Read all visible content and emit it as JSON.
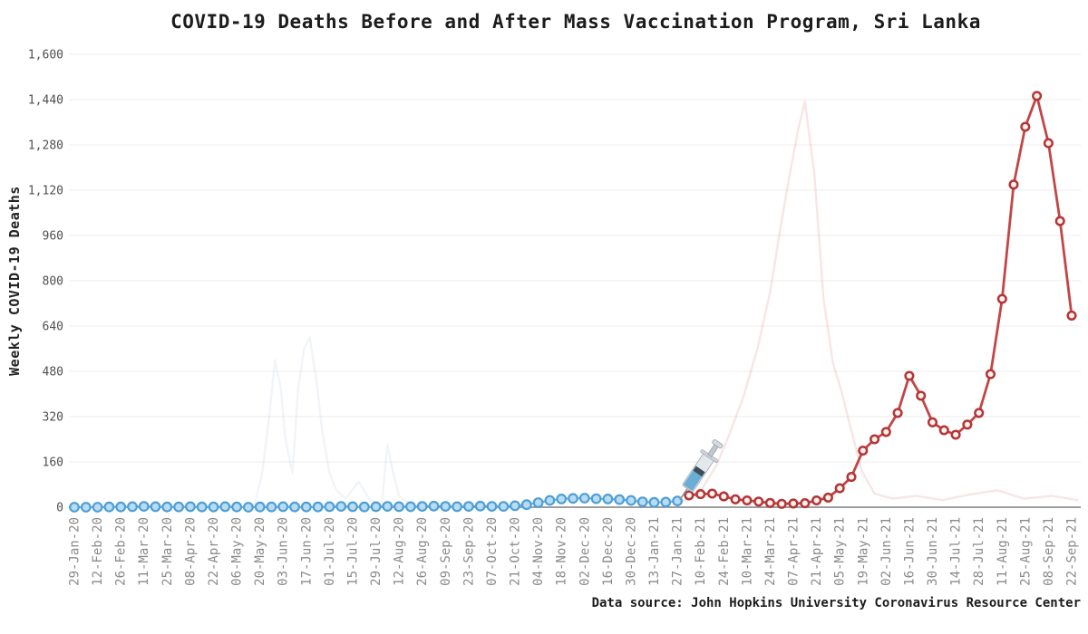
{
  "chart_data": {
    "type": "line",
    "title": "COVID-19 Deaths Before and After Mass Vaccination Program, Sri Lanka",
    "ylabel": "Weekly COVID-19 Deaths",
    "source_caption": "Data source: John Hopkins University Coronavirus Resource Center",
    "ylim": [
      0,
      1600
    ],
    "y_ticks": [
      0,
      160,
      320,
      480,
      640,
      800,
      960,
      1120,
      1280,
      1440,
      1600
    ],
    "y_tick_labels": [
      "0",
      "160",
      "320",
      "480",
      "640",
      "800",
      "960",
      "1,120",
      "1,280",
      "1,440",
      "1,600"
    ],
    "x_cadence": "weekly data points, axis labels every 2 weeks",
    "x_tick_labels": [
      "29-Jan-20",
      "12-Feb-20",
      "26-Feb-20",
      "11-Mar-20",
      "25-Mar-20",
      "08-Apr-20",
      "22-Apr-20",
      "06-May-20",
      "20-May-20",
      "03-Jun-20",
      "17-Jun-20",
      "01-Jul-20",
      "15-Jul-20",
      "29-Jul-20",
      "12-Aug-20",
      "26-Aug-20",
      "09-Sep-20",
      "23-Sep-20",
      "07-Oct-20",
      "21-Oct-20",
      "04-Nov-20",
      "18-Nov-20",
      "02-Dec-20",
      "16-Dec-20",
      "30-Dec-20",
      "13-Jan-21",
      "27-Jan-21",
      "10-Feb-21",
      "24-Feb-21",
      "10-Mar-21",
      "24-Mar-21",
      "07-Apr-21",
      "21-Apr-21",
      "05-May-21",
      "19-May-21",
      "02-Jun-21",
      "16-Jun-21",
      "30-Jun-21",
      "14-Jul-21",
      "28-Jul-21",
      "11-Aug-21",
      "25-Aug-21",
      "08-Sep-21",
      "22-Sep-21"
    ],
    "grid": "horizontal only",
    "legend": "none",
    "series": [
      {
        "name": "before-mass-vaccination",
        "color": "#4d9fd6",
        "fill": "#b9dcf2",
        "line_color": "#5fa8dc",
        "start": "29-Jan-20",
        "start_week_index": 0,
        "values": [
          0,
          0,
          0,
          1,
          1,
          2,
          3,
          2,
          1,
          1,
          2,
          1,
          1,
          2,
          1,
          0,
          1,
          1,
          2,
          1,
          1,
          1,
          2,
          3,
          2,
          1,
          2,
          3,
          2,
          2,
          3,
          4,
          3,
          2,
          3,
          4,
          3,
          3,
          5,
          9,
          16,
          24,
          29,
          31,
          32,
          30,
          29,
          27,
          24,
          19,
          17,
          18,
          22
        ]
      },
      {
        "name": "after-mass-vaccination",
        "color": "#b43535",
        "fill": "#fcf1f1",
        "line_color": "#c24646",
        "start": "03-Feb-21",
        "start_week_index": 53,
        "values": [
          42,
          46,
          48,
          38,
          28,
          24,
          20,
          15,
          12,
          13,
          14,
          24,
          34,
          67,
          107,
          200,
          240,
          266,
          333,
          464,
          394,
          300,
          272,
          256,
          292,
          333,
          470,
          736,
          1140,
          1344,
          1453,
          1286,
          1011,
          677
        ]
      }
    ],
    "annotation": {
      "icon": "syringe",
      "week_index": 52.2,
      "value": 26,
      "tilt_deg": 34
    },
    "watermark_ghosts": [
      {
        "name": "faint-red-ghost-curve",
        "color": "#e08a8a",
        "opacity": 0.22,
        "points": [
          [
            52.1,
            10
          ],
          [
            53,
            35
          ],
          [
            54.2,
            70
          ],
          [
            55.4,
            150
          ],
          [
            56.5,
            260
          ],
          [
            57.7,
            390
          ],
          [
            58.9,
            560
          ],
          [
            60,
            760
          ],
          [
            60.9,
            990
          ],
          [
            61.7,
            1180
          ],
          [
            62.4,
            1330
          ],
          [
            63,
            1434
          ],
          [
            63.8,
            1184
          ],
          [
            64.6,
            736
          ],
          [
            65.4,
            512
          ],
          [
            66.1,
            416
          ],
          [
            66.9,
            288
          ],
          [
            67.9,
            128
          ],
          [
            69,
            48
          ],
          [
            70.6,
            30
          ],
          [
            72.6,
            40
          ],
          [
            74.9,
            25
          ],
          [
            77.2,
            45
          ],
          [
            79.6,
            60
          ],
          [
            81.9,
            30
          ],
          [
            84.3,
            40
          ],
          [
            86.5,
            25
          ]
        ]
      },
      {
        "name": "faint-blue-ghost-curve",
        "color": "#b8c8dc",
        "opacity": 0.2,
        "points": [
          [
            15.5,
            5
          ],
          [
            16.2,
            120
          ],
          [
            16.8,
            320
          ],
          [
            17.3,
            520
          ],
          [
            17.8,
            420
          ],
          [
            18.2,
            240
          ],
          [
            18.8,
            120
          ],
          [
            19.3,
            420
          ],
          [
            19.8,
            560
          ],
          [
            20.3,
            600
          ],
          [
            20.9,
            440
          ],
          [
            21.4,
            260
          ],
          [
            22,
            120
          ],
          [
            22.6,
            60
          ],
          [
            23.4,
            30
          ],
          [
            24.5,
            90
          ],
          [
            25.5,
            25
          ],
          [
            26.5,
            10
          ],
          [
            27,
            220
          ],
          [
            27.5,
            120
          ],
          [
            28,
            40
          ],
          [
            29,
            10
          ]
        ]
      }
    ],
    "colors": {
      "grid": "#ececec",
      "baseline": "#7d7d7d",
      "y_tick_text": "#4f4f4f",
      "x_tick_text": "#8a8a8a",
      "title_text": "#1c1c1c"
    }
  }
}
